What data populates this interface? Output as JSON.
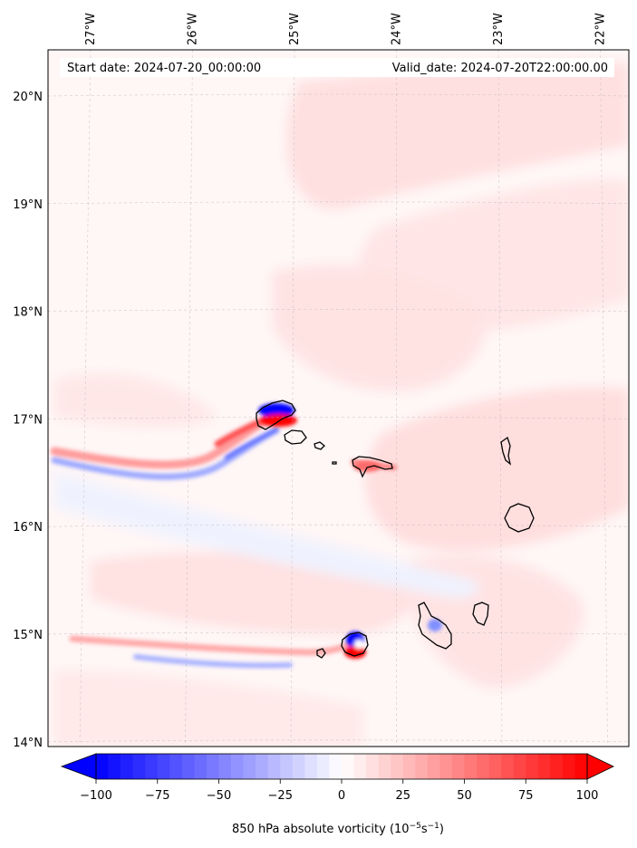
{
  "map": {
    "title_left": "Start date: 2024-07-20_00:00:00",
    "title_right": "Valid_date: 2024-07-20T22:00:00.00",
    "lon_ticks": [
      {
        "label": "27°W",
        "value": -27
      },
      {
        "label": "26°W",
        "value": -26
      },
      {
        "label": "25°W",
        "value": -25
      },
      {
        "label": "24°W",
        "value": -24
      },
      {
        "label": "23°W",
        "value": -23
      },
      {
        "label": "22°W",
        "value": -22
      }
    ],
    "lat_ticks": [
      {
        "label": "20°N",
        "value": 20
      },
      {
        "label": "19°N",
        "value": 19
      },
      {
        "label": "18°N",
        "value": 18
      },
      {
        "label": "17°N",
        "value": 17
      },
      {
        "label": "16°N",
        "value": 16
      },
      {
        "label": "15°N",
        "value": 15
      },
      {
        "label": "14°N",
        "value": 14
      }
    ],
    "colors": {
      "negative": "#0000ff",
      "positive": "#ff0000",
      "neutral": "#ffffff",
      "coastline": "#000000",
      "gridline": "#b0b0b0"
    }
  },
  "colorbar": {
    "ticks": [
      {
        "label": "−100",
        "value": -100
      },
      {
        "label": "−75",
        "value": -75
      },
      {
        "label": "−50",
        "value": -50
      },
      {
        "label": "−25",
        "value": -25
      },
      {
        "label": "0",
        "value": 0
      },
      {
        "label": "25",
        "value": 25
      },
      {
        "label": "50",
        "value": 50
      },
      {
        "label": "75",
        "value": 75
      },
      {
        "label": "100",
        "value": 100
      }
    ],
    "range": [
      -100,
      100
    ],
    "label_main": "850 hPa absolute vorticity (10",
    "label_exp1": "−5",
    "label_mid": "s",
    "label_exp2": "−1",
    "label_end": ")"
  }
}
